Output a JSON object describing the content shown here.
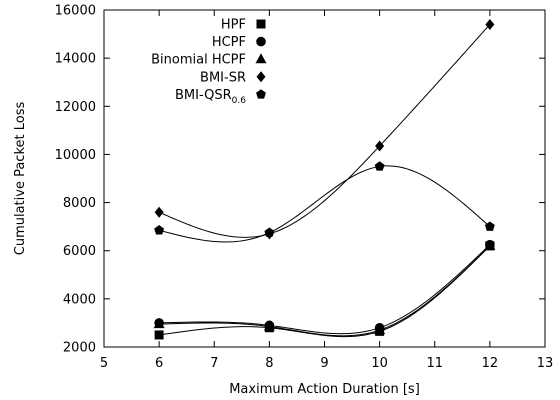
{
  "chart_data": {
    "type": "line",
    "title": "",
    "xlabel": "Maximum Action Duration [s]",
    "ylabel": "Cumulative Packet Loss",
    "xlim": [
      5,
      13
    ],
    "ylim": [
      2000,
      16000
    ],
    "xticks": [
      5,
      6,
      7,
      8,
      9,
      10,
      11,
      12,
      13
    ],
    "xtick_labels": [
      "5",
      "6",
      "7",
      "8",
      "9",
      "10",
      "11",
      "12",
      "13"
    ],
    "yticks": [
      2000,
      4000,
      6000,
      8000,
      10000,
      12000,
      14000,
      16000
    ],
    "ytick_labels": [
      "2000",
      "4000",
      "6000",
      "8000",
      "10000",
      "12000",
      "14000",
      "16000"
    ],
    "grid": false,
    "legend_position": "top-left",
    "smooth_lines": true,
    "series": [
      {
        "name": "HPF",
        "marker": "square",
        "x": [
          6,
          8,
          10,
          12
        ],
        "y": [
          2500,
          2800,
          2650,
          6200
        ]
      },
      {
        "name": "HCPF",
        "marker": "circle",
        "x": [
          6,
          8,
          10,
          12
        ],
        "y": [
          3000,
          2900,
          2800,
          6250
        ]
      },
      {
        "name": "Binomial HCPF",
        "marker": "triangle",
        "x": [
          6,
          8,
          10,
          12
        ],
        "y": [
          2950,
          2850,
          2700,
          6200
        ]
      },
      {
        "name": "BMI-SR",
        "marker": "diamond",
        "x": [
          6,
          8,
          10,
          12
        ],
        "y": [
          7600,
          6700,
          10350,
          15400
        ]
      },
      {
        "name": "BMI-QSR",
        "name_subscript": "0.6",
        "marker": "pentagon",
        "x": [
          6,
          8,
          10,
          12
        ],
        "y": [
          6850,
          6750,
          9500,
          7000
        ]
      }
    ]
  }
}
